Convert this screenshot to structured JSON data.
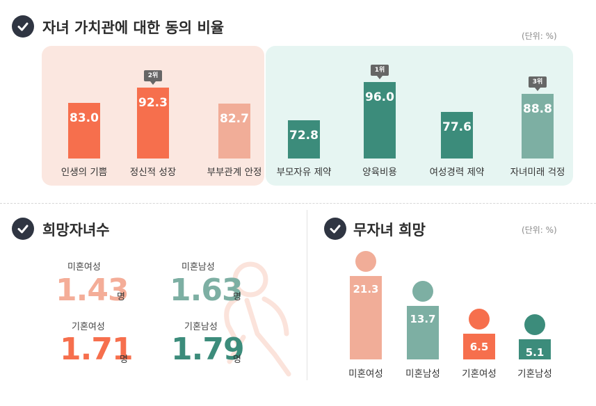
{
  "colors": {
    "coral": "#f66f4d",
    "light_coral": "#f1ad98",
    "teal": "#3c8c7b",
    "light_teal": "#7dafa3",
    "panel_pink": "#fbe7e0",
    "panel_mint": "#e6f5f2",
    "dark": "#2f3542"
  },
  "values_section": {
    "title": "자녀 가치관에 대한 동의 비율",
    "unit": "(단위: %)"
  },
  "hope_children": {
    "title": "희망자녀수",
    "unmarried_female": {
      "label": "미혼여성",
      "value": "1.43",
      "unit": "명"
    },
    "unmarried_male": {
      "label": "미혼남성",
      "value": "1.63",
      "unit": "명"
    },
    "married_female": {
      "label": "기혼여성",
      "value": "1.71",
      "unit": "명"
    },
    "married_male": {
      "label": "기혼남성",
      "value": "1.79",
      "unit": "명"
    }
  },
  "childless": {
    "title": "무자녀 희망",
    "unit": "(단위: %)"
  },
  "chart_data": [
    {
      "type": "bar",
      "title": "자녀 가치관에 대한 동의 비율",
      "categories": [
        "인생의 기쁨",
        "정신적 성장",
        "부부관계 안정",
        "부모자유 제약",
        "양육비용",
        "여성경력 제약",
        "자녀미래 걱정"
      ],
      "values": [
        83.0,
        92.3,
        82.7,
        72.8,
        96.0,
        77.6,
        88.8
      ],
      "value_labels": [
        "83.0",
        "92.3",
        "82.7",
        "72.8",
        "96.0",
        "77.6",
        "88.8"
      ],
      "colors": [
        "#f66f4d",
        "#f66f4d",
        "#f1ad98",
        "#3c8c7b",
        "#3c8c7b",
        "#3c8c7b",
        "#7dafa3"
      ],
      "rank_badges": [
        "",
        "2위",
        "",
        "",
        "1위",
        "",
        "3위"
      ],
      "ylim": [
        0,
        100
      ],
      "grid": false
    },
    {
      "type": "bar",
      "title": "무자녀 희망",
      "categories": [
        "미혼여성",
        "미혼남성",
        "기혼여성",
        "기혼남성"
      ],
      "values": [
        21.3,
        13.7,
        6.5,
        5.1
      ],
      "value_labels": [
        "21.3",
        "13.7",
        "6.5",
        "5.1"
      ],
      "colors": [
        "#f1ad98",
        "#7dafa3",
        "#f66f4d",
        "#3c8c7b"
      ],
      "ylim": [
        0,
        25
      ],
      "grid": false
    }
  ]
}
